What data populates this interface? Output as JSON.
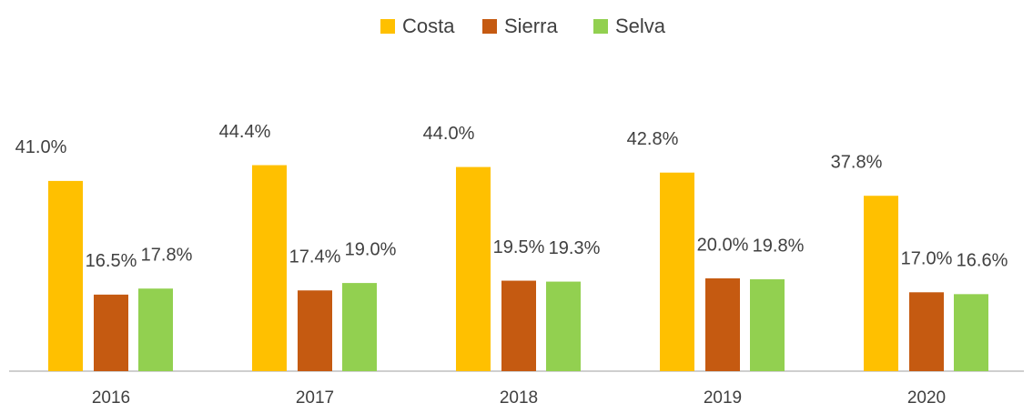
{
  "chart_data": {
    "type": "bar",
    "categories": [
      "2016",
      "2017",
      "2018",
      "2019",
      "2020"
    ],
    "series": [
      {
        "name": "Costa",
        "color": "#FFC000",
        "values": [
          41.0,
          44.4,
          44.0,
          42.8,
          37.8
        ],
        "value_labels": [
          "41.0%",
          "44.4%",
          "44.0%",
          "42.8%",
          "37.8%"
        ]
      },
      {
        "name": "Sierra",
        "color": "#C55A11",
        "values": [
          16.5,
          17.4,
          19.5,
          20.0,
          17.0
        ],
        "value_labels": [
          "16.5%",
          "17.4%",
          "19.5%",
          "20.0%",
          "17.0%"
        ]
      },
      {
        "name": "Selva",
        "color": "#92D050",
        "values": [
          17.8,
          19.0,
          19.3,
          19.8,
          16.6
        ],
        "value_labels": [
          "17.8%",
          "19.0%",
          "19.3%",
          "19.8%",
          "16.6%"
        ]
      }
    ]
  }
}
